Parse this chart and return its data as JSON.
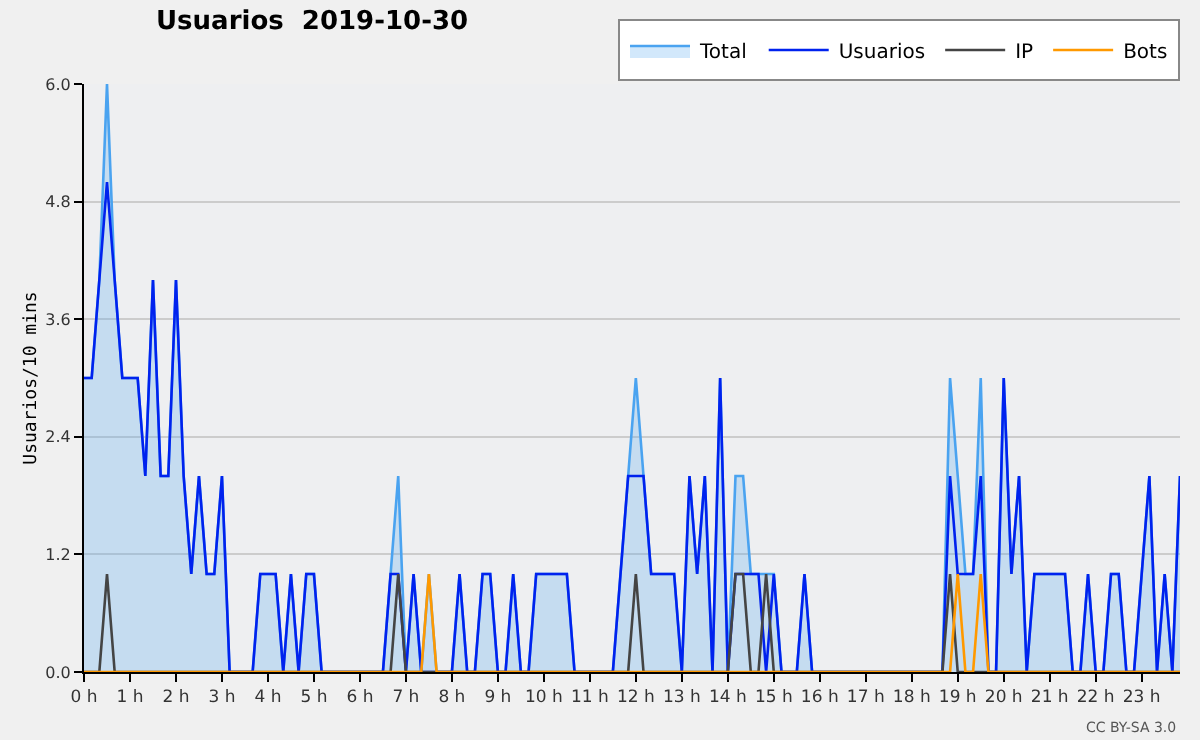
{
  "chart_data": {
    "type": "line",
    "title": "Usuarios  2019-10-30",
    "ylabel": "Usuarios/10 mins",
    "x": [
      0,
      0.167,
      0.333,
      0.5,
      0.667,
      0.833,
      1,
      1.167,
      1.333,
      1.5,
      1.667,
      1.833,
      2,
      2.167,
      2.333,
      2.5,
      2.667,
      2.833,
      3,
      3.167,
      3.333,
      3.5,
      3.667,
      3.833,
      4,
      4.167,
      4.333,
      4.5,
      4.667,
      4.833,
      5,
      5.167,
      5.333,
      5.5,
      5.667,
      5.833,
      6,
      6.167,
      6.333,
      6.5,
      6.667,
      6.833,
      7,
      7.167,
      7.333,
      7.5,
      7.667,
      7.833,
      8,
      8.167,
      8.333,
      8.5,
      8.667,
      8.833,
      9,
      9.167,
      9.333,
      9.5,
      9.667,
      9.833,
      10,
      10.167,
      10.333,
      10.5,
      10.667,
      10.833,
      11,
      11.167,
      11.333,
      11.5,
      11.667,
      11.833,
      12,
      12.167,
      12.333,
      12.5,
      12.667,
      12.833,
      13,
      13.167,
      13.333,
      13.5,
      13.667,
      13.833,
      14,
      14.167,
      14.333,
      14.5,
      14.667,
      14.833,
      15,
      15.167,
      15.333,
      15.5,
      15.667,
      15.833,
      16,
      16.167,
      16.333,
      16.5,
      16.667,
      16.833,
      17,
      17.167,
      17.333,
      17.5,
      17.667,
      17.833,
      18,
      18.167,
      18.333,
      18.5,
      18.667,
      18.833,
      19,
      19.167,
      19.333,
      19.5,
      19.667,
      19.833,
      20,
      20.167,
      20.333,
      20.5,
      20.667,
      20.833,
      21,
      21.167,
      21.333,
      21.5,
      21.667,
      21.833,
      22,
      22.167,
      22.333,
      22.5,
      22.667,
      22.833,
      23,
      23.167,
      23.333,
      23.5,
      23.667,
      23.833
    ],
    "series": [
      {
        "name": "Total",
        "type": "area",
        "color": "#4aa3f0",
        "values": [
          3,
          3,
          4,
          6,
          4,
          3,
          3,
          3,
          2,
          4,
          2,
          2,
          4,
          2,
          1,
          2,
          1,
          1,
          2,
          0,
          0,
          0,
          0,
          1,
          1,
          1,
          0,
          1,
          0,
          1,
          1,
          0,
          0,
          0,
          0,
          0,
          0,
          0,
          0,
          0,
          1,
          2,
          0,
          1,
          0,
          1,
          0,
          0,
          0,
          1,
          0,
          0,
          1,
          1,
          0,
          0,
          1,
          0,
          0,
          1,
          1,
          1,
          1,
          1,
          0,
          0,
          0,
          0,
          0,
          0,
          1,
          2,
          3,
          2,
          1,
          1,
          1,
          1,
          0,
          2,
          1,
          2,
          0,
          3,
          0,
          2,
          2,
          1,
          1,
          1,
          1,
          0,
          0,
          0,
          1,
          0,
          0,
          0,
          0,
          0,
          0,
          0,
          0,
          0,
          0,
          0,
          0,
          0,
          0,
          0,
          0,
          0,
          0,
          3,
          2,
          1,
          1,
          3,
          0,
          0,
          3,
          1,
          2,
          0,
          1,
          1,
          1,
          1,
          1,
          0,
          0,
          1,
          0,
          0,
          1,
          1,
          0,
          0,
          1,
          2,
          0,
          1,
          0,
          2
        ]
      },
      {
        "name": "Usuarios",
        "type": "line",
        "color": "#0022ee",
        "values": [
          3,
          3,
          4,
          5,
          4,
          3,
          3,
          3,
          2,
          4,
          2,
          2,
          4,
          2,
          1,
          2,
          1,
          1,
          2,
          0,
          0,
          0,
          0,
          1,
          1,
          1,
          0,
          1,
          0,
          1,
          1,
          0,
          0,
          0,
          0,
          0,
          0,
          0,
          0,
          0,
          1,
          1,
          0,
          1,
          0,
          0,
          0,
          0,
          0,
          1,
          0,
          0,
          1,
          1,
          0,
          0,
          1,
          0,
          0,
          1,
          1,
          1,
          1,
          1,
          0,
          0,
          0,
          0,
          0,
          0,
          1,
          2,
          2,
          2,
          1,
          1,
          1,
          1,
          0,
          2,
          1,
          2,
          0,
          3,
          0,
          1,
          1,
          1,
          1,
          0,
          1,
          0,
          0,
          0,
          1,
          0,
          0,
          0,
          0,
          0,
          0,
          0,
          0,
          0,
          0,
          0,
          0,
          0,
          0,
          0,
          0,
          0,
          0,
          2,
          1,
          1,
          1,
          2,
          0,
          0,
          3,
          1,
          2,
          0,
          1,
          1,
          1,
          1,
          1,
          0,
          0,
          1,
          0,
          0,
          1,
          1,
          0,
          0,
          1,
          2,
          0,
          1,
          0,
          2
        ]
      },
      {
        "name": "IP",
        "type": "line",
        "color": "#444444",
        "values": [
          0,
          0,
          0,
          1,
          0,
          0,
          0,
          0,
          0,
          0,
          0,
          0,
          0,
          0,
          0,
          0,
          0,
          0,
          0,
          0,
          0,
          0,
          0,
          0,
          0,
          0,
          0,
          0,
          0,
          0,
          0,
          0,
          0,
          0,
          0,
          0,
          0,
          0,
          0,
          0,
          0,
          1,
          0,
          0,
          0,
          0,
          0,
          0,
          0,
          0,
          0,
          0,
          0,
          0,
          0,
          0,
          0,
          0,
          0,
          0,
          0,
          0,
          0,
          0,
          0,
          0,
          0,
          0,
          0,
          0,
          0,
          0,
          1,
          0,
          0,
          0,
          0,
          0,
          0,
          0,
          0,
          0,
          0,
          0,
          0,
          1,
          1,
          0,
          0,
          1,
          0,
          0,
          0,
          0,
          0,
          0,
          0,
          0,
          0,
          0,
          0,
          0,
          0,
          0,
          0,
          0,
          0,
          0,
          0,
          0,
          0,
          0,
          0,
          1,
          0,
          0,
          0,
          0,
          0,
          0,
          0,
          0,
          0,
          0,
          0,
          0,
          0,
          0,
          0,
          0,
          0,
          0,
          0,
          0,
          0,
          0,
          0,
          0,
          0,
          0,
          0,
          0,
          0,
          0
        ]
      },
      {
        "name": "Bots",
        "type": "line",
        "color": "#ff9900",
        "values": [
          0,
          0,
          0,
          0,
          0,
          0,
          0,
          0,
          0,
          0,
          0,
          0,
          0,
          0,
          0,
          0,
          0,
          0,
          0,
          0,
          0,
          0,
          0,
          0,
          0,
          0,
          0,
          0,
          0,
          0,
          0,
          0,
          0,
          0,
          0,
          0,
          0,
          0,
          0,
          0,
          0,
          0,
          0,
          0,
          0,
          1,
          0,
          0,
          0,
          0,
          0,
          0,
          0,
          0,
          0,
          0,
          0,
          0,
          0,
          0,
          0,
          0,
          0,
          0,
          0,
          0,
          0,
          0,
          0,
          0,
          0,
          0,
          0,
          0,
          0,
          0,
          0,
          0,
          0,
          0,
          0,
          0,
          0,
          0,
          0,
          0,
          0,
          0,
          0,
          0,
          0,
          0,
          0,
          0,
          0,
          0,
          0,
          0,
          0,
          0,
          0,
          0,
          0,
          0,
          0,
          0,
          0,
          0,
          0,
          0,
          0,
          0,
          0,
          0,
          1,
          0,
          0,
          1,
          0,
          0,
          0,
          0,
          0,
          0,
          0,
          0,
          0,
          0,
          0,
          0,
          0,
          0,
          0,
          0,
          0,
          0,
          0,
          0,
          0,
          0,
          0,
          0,
          0,
          0
        ]
      }
    ],
    "xlim": [
      0,
      23.833
    ],
    "xticks": [
      {
        "value": 0,
        "label": "0 h"
      },
      {
        "value": 1,
        "label": "1 h"
      },
      {
        "value": 2,
        "label": "2 h"
      },
      {
        "value": 3,
        "label": "3 h"
      },
      {
        "value": 4,
        "label": "4 h"
      },
      {
        "value": 5,
        "label": "5 h"
      },
      {
        "value": 6,
        "label": "6 h"
      },
      {
        "value": 7,
        "label": "7 h"
      },
      {
        "value": 8,
        "label": "8 h"
      },
      {
        "value": 9,
        "label": "9 h"
      },
      {
        "value": 10,
        "label": "10 h"
      },
      {
        "value": 11,
        "label": "11 h"
      },
      {
        "value": 12,
        "label": "12 h"
      },
      {
        "value": 13,
        "label": "13 h"
      },
      {
        "value": 14,
        "label": "14 h"
      },
      {
        "value": 15,
        "label": "15 h"
      },
      {
        "value": 16,
        "label": "16 h"
      },
      {
        "value": 17,
        "label": "17 h"
      },
      {
        "value": 18,
        "label": "18 h"
      },
      {
        "value": 19,
        "label": "19 h"
      },
      {
        "value": 20,
        "label": "20 h"
      },
      {
        "value": 21,
        "label": "21 h"
      },
      {
        "value": 22,
        "label": "22 h"
      },
      {
        "value": 23,
        "label": "23 h"
      }
    ],
    "ylim": [
      0,
      6
    ],
    "yticks": [
      {
        "value": 0,
        "label": "0.0"
      },
      1.2,
      2.4,
      3.6,
      4.8,
      {
        "value": 6,
        "label": "6.0"
      }
    ],
    "grid": "y",
    "legend": "top right",
    "marker": "none",
    "line_style": "solid",
    "annotations": [
      "CC BY-SA 3.0"
    ]
  }
}
